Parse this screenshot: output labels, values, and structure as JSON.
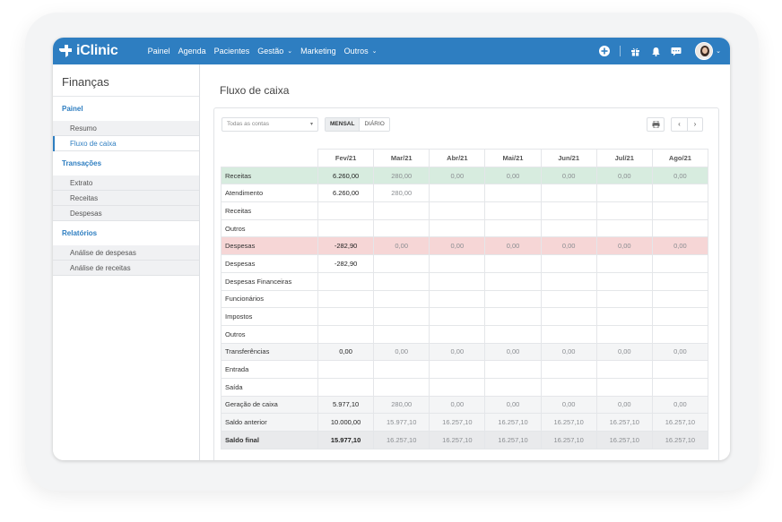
{
  "brand": {
    "name": "iClinic"
  },
  "nav": {
    "items": [
      {
        "label": "Painel",
        "dropdown": false
      },
      {
        "label": "Agenda",
        "dropdown": false
      },
      {
        "label": "Pacientes",
        "dropdown": false
      },
      {
        "label": "Gestão",
        "dropdown": true
      },
      {
        "label": "Marketing",
        "dropdown": false
      },
      {
        "label": "Outros",
        "dropdown": true
      }
    ],
    "right_icons": [
      "plus-circle-icon",
      "gift-icon",
      "bell-icon",
      "chat-icon"
    ]
  },
  "sidebar": {
    "title": "Finanças",
    "sections": [
      {
        "title": "Painel",
        "items": [
          {
            "label": "Resumo",
            "active": false
          },
          {
            "label": "Fluxo de caixa",
            "active": true
          }
        ]
      },
      {
        "title": "Transações",
        "items": [
          {
            "label": "Extrato",
            "active": false
          },
          {
            "label": "Receitas",
            "active": false
          },
          {
            "label": "Despesas",
            "active": false
          }
        ]
      },
      {
        "title": "Relatórios",
        "items": [
          {
            "label": "Análise de despesas",
            "active": false
          },
          {
            "label": "Análise de receitas",
            "active": false
          }
        ]
      }
    ]
  },
  "main": {
    "title": "Fluxo de caixa",
    "filter": {
      "value": "Todas as contas"
    },
    "view_toggle": {
      "options": [
        "MENSAL",
        "DIÁRIO"
      ],
      "selected": "MENSAL"
    },
    "pager": {
      "prev": "‹",
      "next": "›"
    }
  },
  "table": {
    "columns": [
      "Fev/21",
      "Mar/21",
      "Abr/21",
      "Mai/21",
      "Jun/21",
      "Jul/21",
      "Ago/21"
    ],
    "rows": [
      {
        "label": "Receitas",
        "style": "green",
        "values": [
          "6.260,00",
          "280,00",
          "0,00",
          "0,00",
          "0,00",
          "0,00",
          "0,00"
        ]
      },
      {
        "label": "Atendimento",
        "style": "plain",
        "values": [
          "6.260,00",
          "280,00",
          "",
          "",
          "",
          "",
          ""
        ]
      },
      {
        "label": "Receitas",
        "style": "plain",
        "values": [
          "",
          "",
          "",
          "",
          "",
          "",
          ""
        ]
      },
      {
        "label": "Outros",
        "style": "plain",
        "values": [
          "",
          "",
          "",
          "",
          "",
          "",
          ""
        ]
      },
      {
        "label": "Despesas",
        "style": "red",
        "values": [
          "-282,90",
          "0,00",
          "0,00",
          "0,00",
          "0,00",
          "0,00",
          "0,00"
        ]
      },
      {
        "label": "Despesas",
        "style": "plain",
        "values": [
          "-282,90",
          "",
          "",
          "",
          "",
          "",
          ""
        ]
      },
      {
        "label": "Despesas Financeiras",
        "style": "plain",
        "values": [
          "",
          "",
          "",
          "",
          "",
          "",
          ""
        ]
      },
      {
        "label": "Funcionários",
        "style": "plain",
        "values": [
          "",
          "",
          "",
          "",
          "",
          "",
          ""
        ]
      },
      {
        "label": "Impostos",
        "style": "plain",
        "values": [
          "",
          "",
          "",
          "",
          "",
          "",
          ""
        ]
      },
      {
        "label": "Outros",
        "style": "plain",
        "values": [
          "",
          "",
          "",
          "",
          "",
          "",
          ""
        ]
      },
      {
        "label": "Transferências",
        "style": "gray",
        "values": [
          "0,00",
          "0,00",
          "0,00",
          "0,00",
          "0,00",
          "0,00",
          "0,00"
        ]
      },
      {
        "label": "Entrada",
        "style": "plain",
        "values": [
          "",
          "",
          "",
          "",
          "",
          "",
          ""
        ]
      },
      {
        "label": "Saída",
        "style": "plain",
        "values": [
          "",
          "",
          "",
          "",
          "",
          "",
          ""
        ]
      },
      {
        "label": "Geração de caixa",
        "style": "gray",
        "values": [
          "5.977,10",
          "280,00",
          "0,00",
          "0,00",
          "0,00",
          "0,00",
          "0,00"
        ]
      },
      {
        "label": "Saldo anterior",
        "style": "gray",
        "values": [
          "10.000,00",
          "15.977,10",
          "16.257,10",
          "16.257,10",
          "16.257,10",
          "16.257,10",
          "16.257,10"
        ]
      },
      {
        "label": "Saldo final",
        "style": "final",
        "values": [
          "15.977,10",
          "16.257,10",
          "16.257,10",
          "16.257,10",
          "16.257,10",
          "16.257,10",
          "16.257,10"
        ]
      }
    ]
  },
  "colors": {
    "topbar": "#2e7ec1",
    "accent": "#2e7ec1",
    "row_green": "#d7ecdf",
    "row_red": "#f6d6d6",
    "row_gray": "#f4f5f6"
  }
}
